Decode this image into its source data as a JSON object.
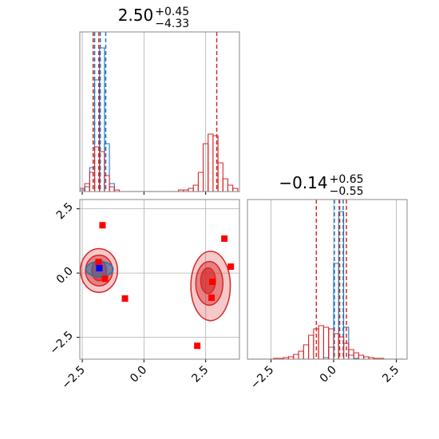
{
  "chart_data": [
    {
      "type": "histogram",
      "title": {
        "value": "2.50",
        "upper": "+0.45",
        "lower": "−4.33"
      },
      "bins": [
        -2.6,
        -2.4,
        -2.2,
        -2.0,
        -1.8,
        -1.6,
        -1.4,
        -1.2,
        -1.0,
        -0.8,
        -0.6,
        -0.4,
        -0.2,
        0.0,
        0.2,
        0.4,
        0.6,
        0.8,
        1.0,
        1.2,
        1.4,
        1.6,
        1.8,
        2.0,
        2.2,
        2.4,
        2.6,
        2.8,
        3.0,
        3.2,
        3.4,
        3.6,
        3.8
      ],
      "series": [
        {
          "color": "#1f77b4",
          "values": [
            1,
            3,
            15,
            70,
            90,
            30,
            5,
            1,
            0,
            0,
            0,
            0,
            0,
            0,
            0,
            0,
            0,
            0,
            0,
            0,
            0,
            0,
            0,
            0,
            0,
            0,
            0,
            0,
            0,
            0,
            0,
            0
          ],
          "quantiles": [
            -2.0,
            -1.77,
            -1.55
          ]
        },
        {
          "color": "#d62728",
          "values": [
            2,
            5,
            12,
            28,
            25,
            10,
            3,
            1,
            0,
            0,
            0,
            0,
            0,
            0,
            0,
            0,
            0,
            0,
            0,
            0,
            1,
            1,
            2,
            4,
            12,
            30,
            36,
            35,
            18,
            8,
            4,
            2
          ],
          "quantiles": [
            -2.06,
            -1.83,
            2.95
          ]
        }
      ],
      "xlim": [
        -2.6,
        3.87
      ],
      "ylim": [
        0,
        100
      ],
      "xticks": [
        {
          "value": -2.5,
          "label": "−2.5"
        },
        {
          "value": 0,
          "label": "0.0"
        },
        2.5
      ],
      "grid": true
    },
    {
      "type": "scatter",
      "xlim": [
        -2.6,
        3.87
      ],
      "ylim": [
        -3.35,
        2.86
      ],
      "xticks": [
        {
          "value": -2.5,
          "label": "−2.5"
        },
        {
          "value": 0,
          "label": "0.0"
        },
        2.5
      ],
      "yticks": [
        {
          "value": -2.5,
          "label": "−2.5"
        },
        {
          "value": 0,
          "label": "0.0"
        },
        2.5
      ],
      "grid": true,
      "contours": [
        {
          "color": "#d62728",
          "levels": [
            {
              "x": -1.82,
              "y": 0.1,
              "rx": 0.75,
              "ry": 0.85
            },
            {
              "x": -1.82,
              "y": 0.1,
              "rx": 0.55,
              "ry": 0.6
            },
            {
              "x": -1.82,
              "y": 0.1,
              "rx": 0.3,
              "ry": 0.4
            }
          ]
        },
        {
          "color": "#d62728",
          "levels": [
            {
              "x": 2.7,
              "y": -0.5,
              "rx": 0.8,
              "ry": 1.35
            },
            {
              "x": 2.65,
              "y": -0.4,
              "rx": 0.55,
              "ry": 0.85
            },
            {
              "x": 2.6,
              "y": -0.3,
              "rx": 0.3,
              "ry": 0.5
            }
          ]
        },
        {
          "color": "#1f77b4",
          "levels": [
            {
              "x": -1.8,
              "y": 0.15,
              "rx": 0.55,
              "ry": 0.3
            }
          ]
        }
      ],
      "series": [
        {
          "color": "#ff0000",
          "x": [
            -1.68,
            3.26,
            3.52,
            2.77,
            2.74,
            -0.77,
            2.16,
            -1.58,
            -1.84
          ],
          "values": [
            1.86,
            1.34,
            0.25,
            -0.34,
            -0.96,
            -0.99,
            -2.83,
            -0.22,
            0.43
          ]
        },
        {
          "color": "#0000ff",
          "x": [
            -1.81
          ],
          "values": [
            0.19
          ]
        }
      ]
    },
    {
      "type": "histogram",
      "title": {
        "value": "−0.14",
        "upper": "+0.65",
        "lower": "−0.55"
      },
      "bins": [
        -3.4,
        -3.2,
        -3.0,
        -2.8,
        -2.6,
        -2.4,
        -2.2,
        -2.0,
        -1.8,
        -1.6,
        -1.4,
        -1.2,
        -1.0,
        -0.8,
        -0.6,
        -0.4,
        -0.2,
        0.0,
        0.2,
        0.4,
        0.6,
        0.8,
        1.0,
        1.2,
        1.4,
        1.6,
        1.8,
        2.0,
        2.2,
        2.4,
        2.6,
        2.8
      ],
      "series": [
        {
          "color": "#1f77b4",
          "values": [
            0,
            0,
            0,
            0,
            0,
            0,
            0,
            0,
            0,
            0,
            0,
            0,
            0,
            0,
            0,
            2,
            15,
            120,
            185,
            40,
            5,
            1,
            0,
            0,
            0,
            0,
            0,
            0,
            0,
            0,
            0
          ],
          "quantiles": [
            0.03,
            0.22,
            0.38
          ]
        },
        {
          "color": "#d62728",
          "values": [
            0,
            0,
            0,
            0,
            0,
            1,
            1,
            2,
            3,
            6,
            10,
            18,
            30,
            38,
            42,
            40,
            38,
            32,
            28,
            20,
            12,
            8,
            5,
            3,
            2,
            1,
            1,
            0,
            0,
            0,
            0
          ],
          "quantiles": [
            -0.69,
            0.24,
            0.51
          ]
        }
      ],
      "xlim": [
        -3.44,
        2.93
      ],
      "ylim": [
        0,
        200
      ],
      "xticks": [
        {
          "value": -2.5,
          "label": "−2.5"
        },
        {
          "value": 0,
          "label": "0.0"
        },
        2.5
      ],
      "grid": true
    }
  ]
}
